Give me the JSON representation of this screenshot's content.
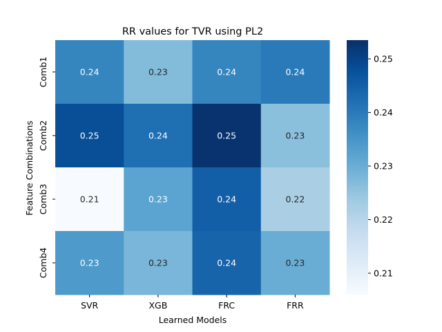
{
  "chart_data": {
    "type": "heatmap",
    "title": "RR values for TVR using PL2",
    "xlabel": "Learned Models",
    "ylabel": "Feature Combinations",
    "x_categories": [
      "SVR",
      "XGB",
      "FRC",
      "FRR"
    ],
    "y_categories": [
      "Comb1",
      "Comb2",
      "Comb3",
      "Comb4"
    ],
    "values": [
      [
        0.238,
        0.227,
        0.238,
        0.24
      ],
      [
        0.248,
        0.242,
        0.253,
        0.226
      ],
      [
        0.206,
        0.232,
        0.245,
        0.222
      ],
      [
        0.234,
        0.228,
        0.244,
        0.23
      ]
    ],
    "labels": [
      [
        "0.24",
        "0.23",
        "0.24",
        "0.24"
      ],
      [
        "0.25",
        "0.24",
        "0.25",
        "0.23"
      ],
      [
        "0.21",
        "0.23",
        "0.24",
        "0.22"
      ],
      [
        "0.23",
        "0.23",
        "0.24",
        "0.23"
      ]
    ],
    "colorbar": {
      "vmin": 0.206,
      "vmax": 0.2535,
      "ticks": [
        0.21,
        0.22,
        0.23,
        0.24,
        0.25
      ],
      "tick_labels": [
        "0.21",
        "0.22",
        "0.23",
        "0.24",
        "0.25"
      ],
      "colormap": "Blues"
    },
    "grid": false,
    "legend": "colorbar-right"
  }
}
